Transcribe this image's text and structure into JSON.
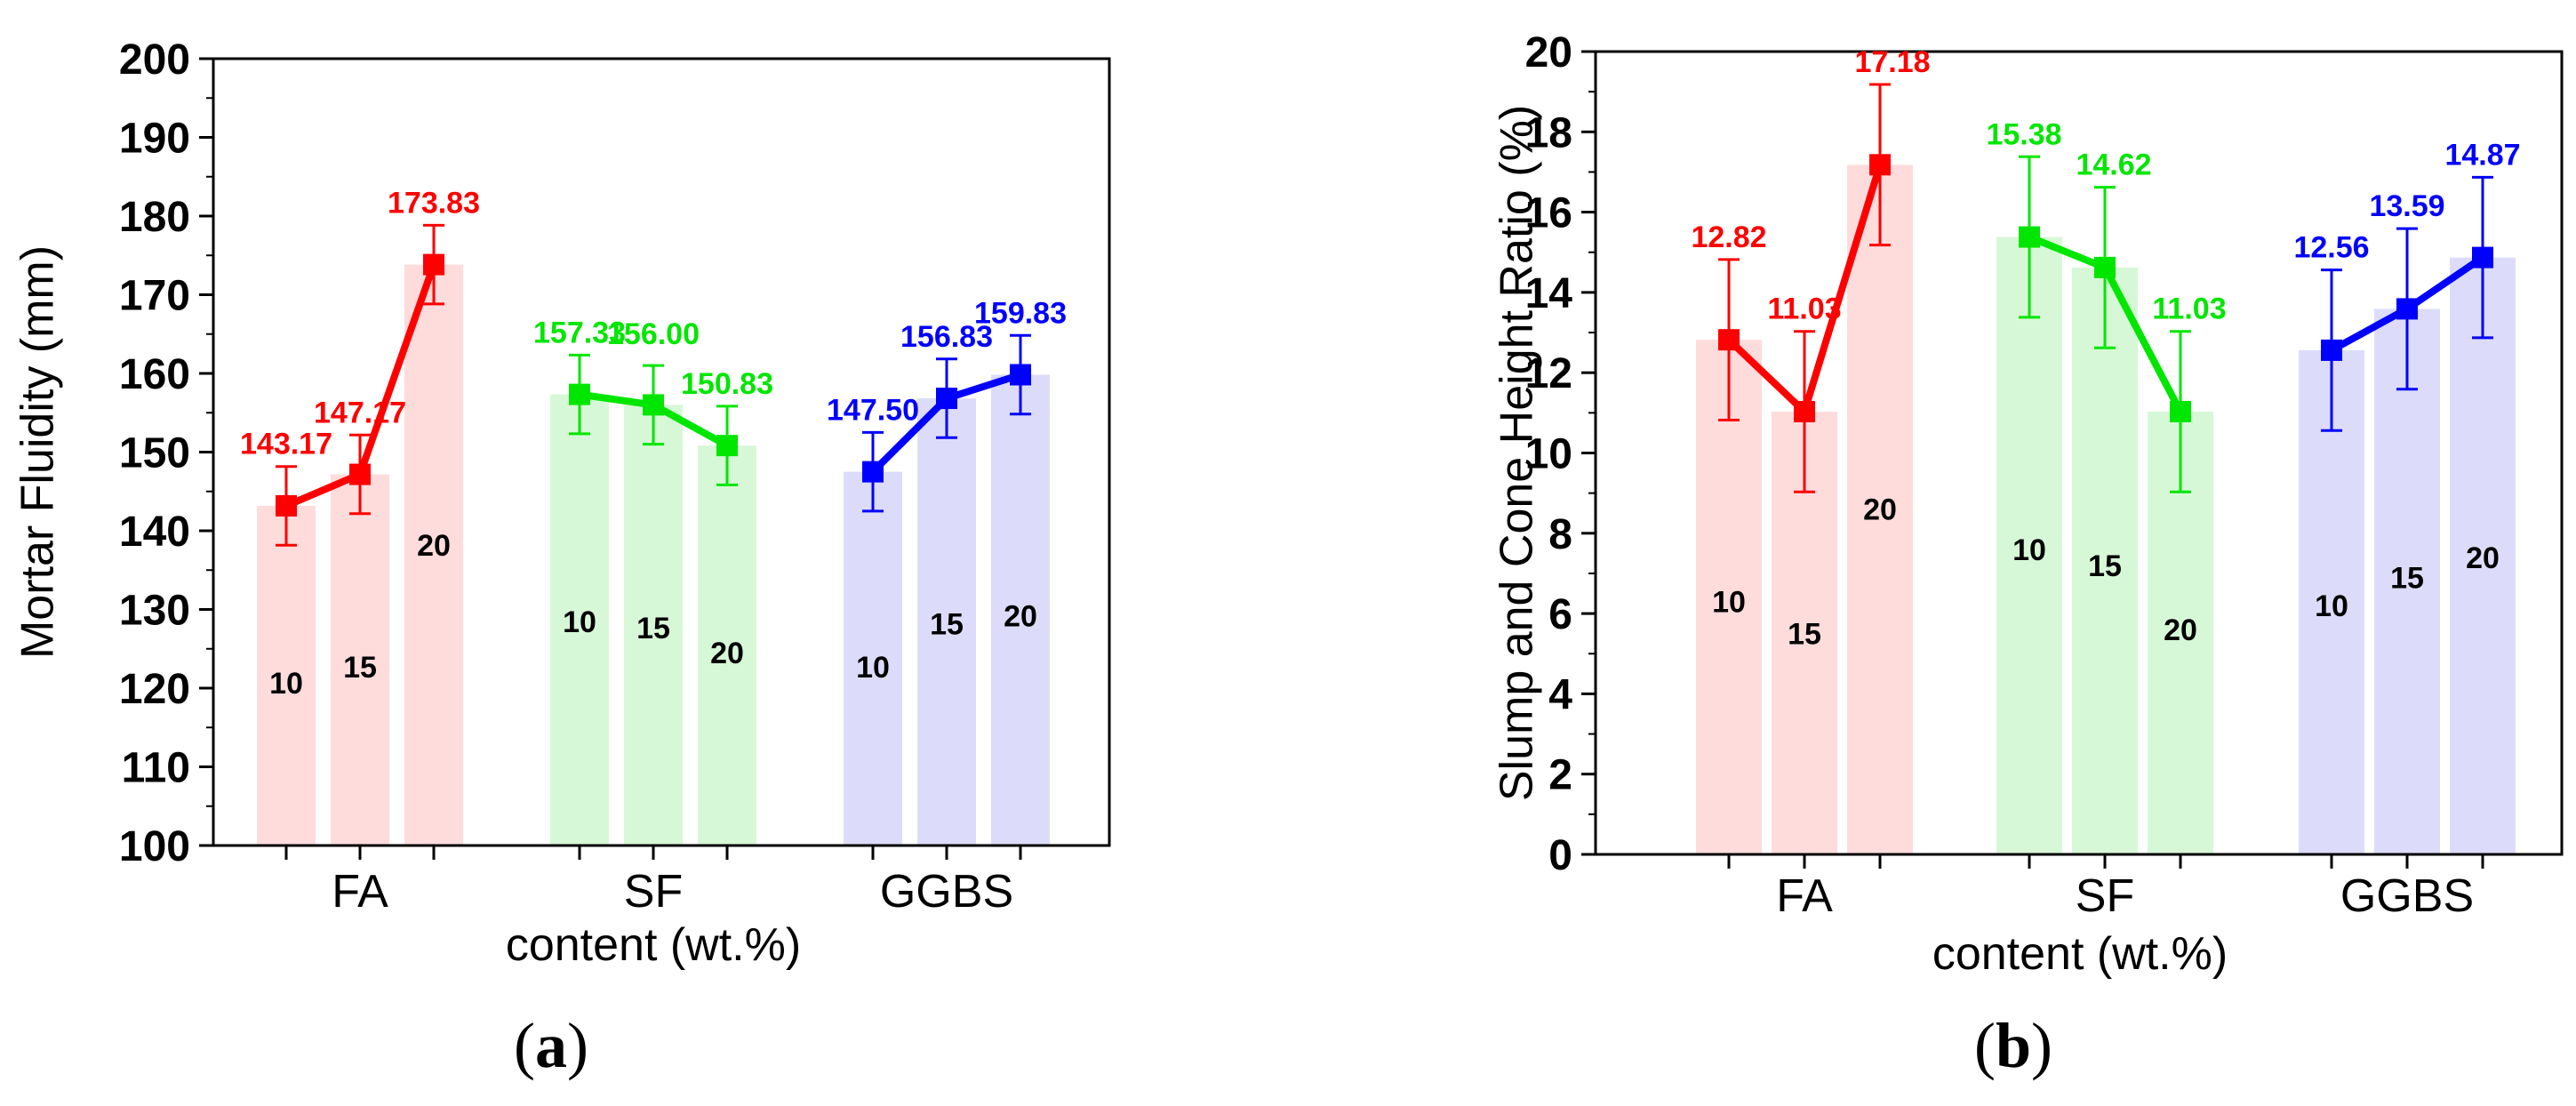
{
  "chart_data": [
    {
      "type": "bar",
      "panel_label": "a",
      "ylabel": "Mortar Fluidity (mm)",
      "xlabel": "content (wt.%)",
      "ylim": [
        100,
        200
      ],
      "ytick_step": 10,
      "minor_ticks": true,
      "grid": false,
      "groups": [
        {
          "name": "FA",
          "color": "#ff0000",
          "bar_color": "#ffdcdc",
          "categories": [
            "10",
            "15",
            "20"
          ],
          "values": [
            143.17,
            147.17,
            173.83
          ],
          "value_labels": [
            "143.17",
            "147.17",
            "173.83"
          ],
          "error": [
            5,
            5,
            5
          ],
          "bar_label_values": [
            120.7,
            122.7,
            138.2
          ]
        },
        {
          "name": "SF",
          "color": "#00e600",
          "bar_color": "#d7f8d7",
          "categories": [
            "10",
            "15",
            "20"
          ],
          "values": [
            157.33,
            156.0,
            150.83
          ],
          "value_labels": [
            "157.33",
            "156.00",
            "150.83"
          ],
          "error": [
            5,
            5,
            5
          ],
          "bar_label_values": [
            128.5,
            127.7,
            124.5
          ],
          "value_label_offsets": [
            [
              0,
              0
            ],
            [
              0,
              -10
            ],
            [
              0,
              0
            ]
          ]
        },
        {
          "name": "GGBS",
          "color": "#0000ff",
          "bar_color": "#dcdcfa",
          "categories": [
            "10",
            "15",
            "20"
          ],
          "values": [
            147.5,
            156.83,
            159.83
          ],
          "value_labels": [
            "147.50",
            "156.83",
            "159.83"
          ],
          "error": [
            5,
            5,
            5
          ],
          "bar_label_values": [
            122.7,
            128.2,
            129.2
          ]
        }
      ]
    },
    {
      "type": "bar",
      "panel_label": "b",
      "ylabel": "Slump and Cone Height Ratio (%)",
      "xlabel": "content (wt.%)",
      "ylim": [
        0,
        20
      ],
      "ytick_step": 2,
      "minor_ticks": true,
      "grid": false,
      "groups": [
        {
          "name": "FA",
          "color": "#ff0000",
          "bar_color": "#ffdcdc",
          "categories": [
            "10",
            "15",
            "20"
          ],
          "values": [
            12.82,
            11.03,
            17.18
          ],
          "value_labels": [
            "12.82",
            "11.03",
            "17.18"
          ],
          "error": [
            2,
            2,
            2
          ],
          "bar_label_values": [
            6.3,
            5.5,
            8.6
          ],
          "value_label_offsets": [
            [
              0,
              0
            ],
            [
              0,
              0
            ],
            [
              14,
              0
            ]
          ]
        },
        {
          "name": "SF",
          "color": "#00e600",
          "bar_color": "#d7f8d7",
          "categories": [
            "10",
            "15",
            "20"
          ],
          "values": [
            15.38,
            14.62,
            11.03
          ],
          "value_labels": [
            "15.38",
            "14.62",
            "11.03"
          ],
          "error": [
            2,
            2,
            2
          ],
          "bar_label_values": [
            7.6,
            7.2,
            5.6
          ],
          "value_label_offsets": [
            [
              -6,
              0
            ],
            [
              10,
              0
            ],
            [
              10,
              0
            ]
          ]
        },
        {
          "name": "GGBS",
          "color": "#0000ff",
          "bar_color": "#dcdcfa",
          "categories": [
            "10",
            "15",
            "20"
          ],
          "values": [
            12.56,
            13.59,
            14.87
          ],
          "value_labels": [
            "12.56",
            "13.59",
            "14.87"
          ],
          "error": [
            2,
            2,
            2
          ],
          "bar_label_values": [
            6.2,
            6.9,
            7.4
          ]
        }
      ]
    }
  ]
}
